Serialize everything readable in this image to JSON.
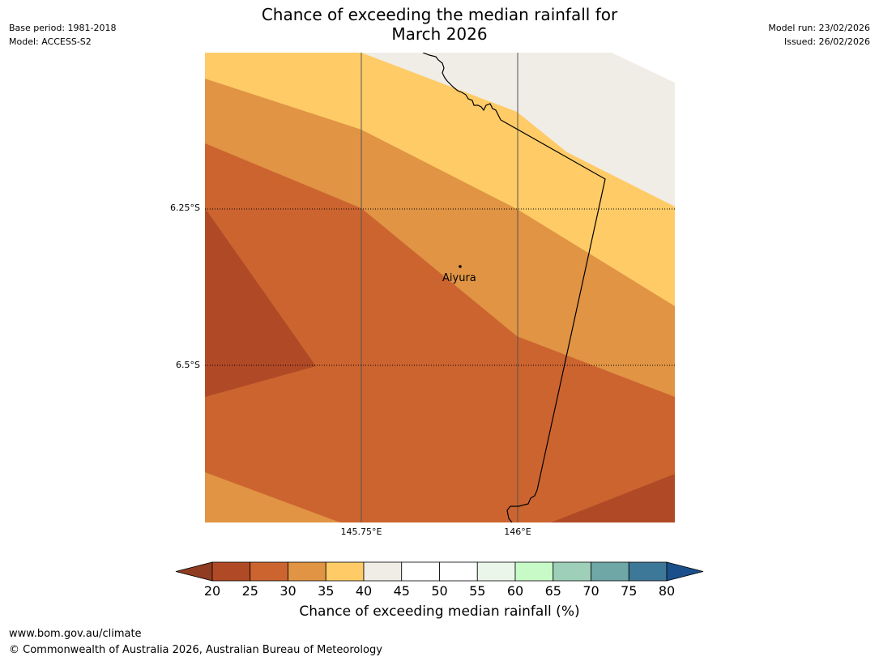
{
  "header": {
    "base_period": "Base period: 1981-2018",
    "model": "Model: ACCESS-S2",
    "model_run": "Model run: 23/02/2026",
    "issued": "Issued: 26/02/2026",
    "title_line1": "Chance of exceeding the median rainfall for",
    "title_line2": "March 2026"
  },
  "map": {
    "latitude_labels": [
      "6.25°S",
      "6.5°S"
    ],
    "longitude_labels": [
      "145.75°E",
      "146°E"
    ],
    "place_name": "Aiyura",
    "colors": {
      "band_20_25": "#b04a26",
      "band_25_30": "#cc6430",
      "band_30_35": "#e09444",
      "band_35_40": "#fecb66",
      "band_40_45": "#f0ece6"
    }
  },
  "colorbar": {
    "ticks": [
      "20",
      "25",
      "30",
      "35",
      "40",
      "45",
      "50",
      "55",
      "60",
      "65",
      "70",
      "75",
      "80"
    ],
    "label": "Chance of exceeding median rainfall (%)",
    "colors": [
      "#8f3c23",
      "#b04a26",
      "#cc6430",
      "#e09444",
      "#fecb66",
      "#f0ece6",
      "#ffffff",
      "#ffffff",
      "#eaf6ea",
      "#c8fac8",
      "#9ecfb8",
      "#6fa6a6",
      "#3e7899",
      "#1a4f8b"
    ]
  },
  "footer": {
    "website": "www.bom.gov.au/climate",
    "copyright": "© Commonwealth of Australia 2026, Australian Bureau of Meteorology"
  }
}
